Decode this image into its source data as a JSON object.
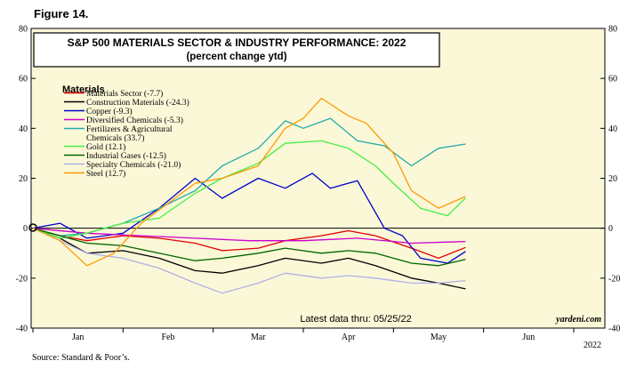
{
  "figure_label": "Figure 14.",
  "source": "Source: Standard & Poor’s.",
  "colors": {
    "plot_bg": "#fbf8d8",
    "frame": "#000000"
  },
  "chart_data": {
    "type": "line",
    "title": "S&P 500 MATERIALS SECTOR & INDUSTRY PERFORMANCE: 2022",
    "subtitle": "(percent change ytd)",
    "xlabel": "",
    "ylabel": "",
    "ylim": [
      -40,
      80
    ],
    "yticks": [
      -40,
      -20,
      0,
      20,
      40,
      60,
      80
    ],
    "x_range": [
      0,
      6
    ],
    "x_tick_labels": [
      "Jan",
      "Feb",
      "Mar",
      "Apr",
      "May",
      "Jun"
    ],
    "year_label": "2022",
    "legend_title": "Materials",
    "legend_position": "top-left",
    "annotation": "Latest data thru: 05/25/22",
    "watermark": "yardeni.com",
    "series": [
      {
        "name": "Materials Sector (-7.7)",
        "color": "#e00000",
        "x": [
          0,
          0.3,
          0.6,
          1.0,
          1.4,
          1.8,
          2.1,
          2.5,
          2.8,
          3.2,
          3.5,
          3.8,
          4.2,
          4.5,
          4.8
        ],
        "y": [
          0,
          -3,
          -5,
          -3,
          -4,
          -6,
          -9,
          -8,
          -5,
          -3,
          -1,
          -3,
          -8,
          -12,
          -7.7
        ]
      },
      {
        "name": "Construction Materials (-24.3)",
        "color": "#000000",
        "x": [
          0,
          0.3,
          0.6,
          1.0,
          1.4,
          1.8,
          2.1,
          2.5,
          2.8,
          3.2,
          3.5,
          3.8,
          4.2,
          4.5,
          4.8
        ],
        "y": [
          0,
          -4,
          -10,
          -9,
          -12,
          -17,
          -18,
          -15,
          -12,
          -14,
          -12,
          -15,
          -20,
          -22,
          -24.3
        ]
      },
      {
        "name": "Copper (-9.3)",
        "color": "#0000cc",
        "x": [
          0,
          0.3,
          0.6,
          1.0,
          1.4,
          1.8,
          2.1,
          2.5,
          2.8,
          3.1,
          3.3,
          3.6,
          3.9,
          4.1,
          4.3,
          4.6,
          4.8
        ],
        "y": [
          0,
          2,
          -4,
          -2,
          8,
          20,
          12,
          20,
          16,
          22,
          16,
          19,
          0,
          -3,
          -12,
          -14,
          -9.3
        ]
      },
      {
        "name": "Diversified Chemicals (-5.3)",
        "color": "#cc00cc",
        "x": [
          0,
          0.6,
          1.2,
          1.8,
          2.4,
          3.0,
          3.6,
          4.2,
          4.8
        ],
        "y": [
          0,
          -2,
          -3,
          -4,
          -5,
          -5,
          -4,
          -6,
          -5.3
        ]
      },
      {
        "name": "Fertilizers & Agricultural Chemicals (33.7)",
        "color": "#22aaaa",
        "x": [
          0,
          0.3,
          0.6,
          1.0,
          1.4,
          1.8,
          2.1,
          2.5,
          2.8,
          3.0,
          3.3,
          3.6,
          3.9,
          4.2,
          4.5,
          4.8
        ],
        "y": [
          0,
          -3,
          -2,
          2,
          8,
          15,
          25,
          32,
          43,
          40,
          44,
          35,
          33,
          25,
          32,
          33.7
        ]
      },
      {
        "name": "Gold (12.1)",
        "color": "#44ee44",
        "x": [
          0,
          0.3,
          0.6,
          1.0,
          1.4,
          1.8,
          2.1,
          2.5,
          2.8,
          3.2,
          3.5,
          3.8,
          4.0,
          4.3,
          4.6,
          4.8
        ],
        "y": [
          0,
          -4,
          -2,
          2,
          4,
          14,
          20,
          26,
          34,
          35,
          32,
          25,
          18,
          8,
          5,
          12.1
        ]
      },
      {
        "name": "Industrial Gases (-12.5)",
        "color": "#006600",
        "x": [
          0,
          0.3,
          0.6,
          1.0,
          1.4,
          1.8,
          2.1,
          2.5,
          2.8,
          3.2,
          3.5,
          3.8,
          4.2,
          4.5,
          4.8
        ],
        "y": [
          0,
          -3,
          -6,
          -7,
          -10,
          -13,
          -12,
          -10,
          -8,
          -10,
          -9,
          -10,
          -14,
          -15,
          -12.5
        ]
      },
      {
        "name": "Specialty Chemicals (-21.0)",
        "color": "#b0b0e8",
        "x": [
          0,
          0.3,
          0.6,
          1.0,
          1.4,
          1.8,
          2.1,
          2.5,
          2.8,
          3.2,
          3.5,
          3.8,
          4.2,
          4.5,
          4.8
        ],
        "y": [
          0,
          -5,
          -10,
          -12,
          -16,
          -22,
          -26,
          -22,
          -18,
          -20,
          -19,
          -20,
          -22,
          -22,
          -21.0
        ]
      },
      {
        "name": "Steel (12.7)",
        "color": "#ff9900",
        "x": [
          0,
          0.3,
          0.6,
          0.9,
          1.2,
          1.5,
          1.8,
          2.1,
          2.5,
          2.8,
          3.0,
          3.2,
          3.5,
          3.7,
          4.0,
          4.2,
          4.5,
          4.8
        ],
        "y": [
          0,
          -5,
          -15,
          -10,
          2,
          10,
          18,
          20,
          25,
          40,
          44,
          52,
          45,
          42,
          30,
          15,
          8,
          12.7
        ]
      }
    ]
  }
}
